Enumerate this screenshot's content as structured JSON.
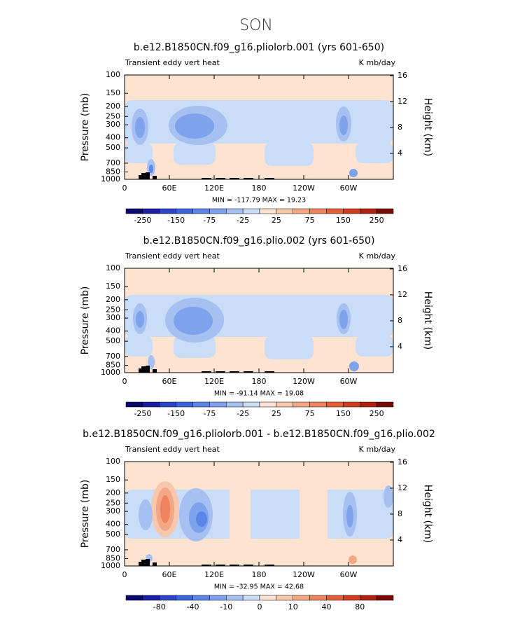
{
  "title": "SON",
  "chart_data": [
    {
      "type": "contour",
      "title": "b.e12.B1850CN.f09_g16.pliolorb.001 (yrs 601-650)",
      "left_label": "Transient eddy vert heat",
      "right_label": "K mb/day",
      "ylabel": "Pressure (mb)",
      "y2label": "Height (km)",
      "xlim": [
        0,
        360
      ],
      "xticks": [
        0,
        {
          "value": 60,
          "label": "60E"
        },
        {
          "value": 120,
          "label": "120E"
        },
        180,
        {
          "value": 240,
          "label": "120W"
        },
        {
          "value": 300,
          "label": "60W"
        }
      ],
      "ylim": [
        1000,
        100
      ],
      "ylog": true,
      "yticks": [
        100,
        150,
        200,
        250,
        300,
        400,
        500,
        700,
        850,
        1000
      ],
      "y2lim": [
        0,
        16.1
      ],
      "y2ticks": [
        4,
        8,
        12,
        16
      ],
      "stats": "MIN = -117.79   MAX =  19.23",
      "colorbar": {
        "levels": [
          -250,
          -200,
          -150,
          -100,
          -75,
          -50,
          -25,
          0,
          25,
          50,
          75,
          100,
          150,
          200,
          250
        ],
        "ticks": [
          -250,
          -150,
          -75,
          -25,
          25,
          75,
          150,
          250
        ],
        "colors": [
          "#08086e",
          "#1a1fa3",
          "#2a45c9",
          "#3a66dc",
          "#5b86e6",
          "#7fa2ed",
          "#a6c0f2",
          "#c9ddf8",
          "#fde3d0",
          "#f9c8ac",
          "#f4a785",
          "#ee835e",
          "#e65d38",
          "#d43b1e",
          "#b0200d",
          "#7a0a06"
        ]
      }
    },
    {
      "type": "contour",
      "title": "b.e12.B1850CN.f09_g16.plio.002 (yrs 601-650)",
      "left_label": "Transient eddy vert heat",
      "right_label": "K mb/day",
      "ylabel": "Pressure (mb)",
      "y2label": "Height (km)",
      "xlim": [
        0,
        360
      ],
      "xticks": [
        0,
        {
          "value": 60,
          "label": "60E"
        },
        {
          "value": 120,
          "label": "120E"
        },
        180,
        {
          "value": 240,
          "label": "120W"
        },
        {
          "value": 300,
          "label": "60W"
        }
      ],
      "ylim": [
        1000,
        100
      ],
      "ylog": true,
      "yticks": [
        100,
        150,
        200,
        250,
        300,
        400,
        500,
        700,
        850,
        1000
      ],
      "y2lim": [
        0,
        16.1
      ],
      "y2ticks": [
        4,
        8,
        12,
        16
      ],
      "stats": "MIN = -91.14   MAX =  19.08",
      "colorbar": {
        "levels": [
          -250,
          -200,
          -150,
          -100,
          -75,
          -50,
          -25,
          0,
          25,
          50,
          75,
          100,
          150,
          200,
          250
        ],
        "ticks": [
          -250,
          -150,
          -75,
          -25,
          25,
          75,
          150,
          250
        ],
        "colors": [
          "#08086e",
          "#1a1fa3",
          "#2a45c9",
          "#3a66dc",
          "#5b86e6",
          "#7fa2ed",
          "#a6c0f2",
          "#c9ddf8",
          "#fde3d0",
          "#f9c8ac",
          "#f4a785",
          "#ee835e",
          "#e65d38",
          "#d43b1e",
          "#b0200d",
          "#7a0a06"
        ]
      }
    },
    {
      "type": "contour",
      "title": "b.e12.B1850CN.f09_g16.pliolorb.001 - b.e12.B1850CN.f09_g16.plio.002",
      "left_label": "Transient eddy vert heat",
      "right_label": "K mb/day",
      "ylabel": "Pressure (mb)",
      "y2label": "Height (km)",
      "xlim": [
        0,
        360
      ],
      "xticks": [
        0,
        {
          "value": 60,
          "label": "60E"
        },
        {
          "value": 120,
          "label": "120E"
        },
        180,
        {
          "value": 240,
          "label": "120W"
        },
        {
          "value": 300,
          "label": "60W"
        }
      ],
      "ylim": [
        1000,
        100
      ],
      "ylog": true,
      "yticks": [
        100,
        150,
        200,
        250,
        300,
        400,
        500,
        700,
        850,
        1000
      ],
      "y2lim": [
        0,
        16.1
      ],
      "y2ticks": [
        4,
        8,
        12,
        16
      ],
      "stats": "MIN = -32.95   MAX =  42.68",
      "colorbar": {
        "levels": [
          -100,
          -80,
          -60,
          -40,
          -20,
          -10,
          -5,
          0,
          5,
          10,
          20,
          40,
          60,
          80,
          100
        ],
        "ticks": [
          -80,
          -40,
          -10,
          0,
          10,
          40,
          80
        ],
        "colors": [
          "#08086e",
          "#1a1fa3",
          "#2a45c9",
          "#3a66dc",
          "#5b86e6",
          "#7fa2ed",
          "#a6c0f2",
          "#c9ddf8",
          "#fde3d0",
          "#f9c8ac",
          "#f4a785",
          "#ee835e",
          "#e65d38",
          "#d43b1e",
          "#b0200d",
          "#7a0a06"
        ]
      }
    }
  ]
}
